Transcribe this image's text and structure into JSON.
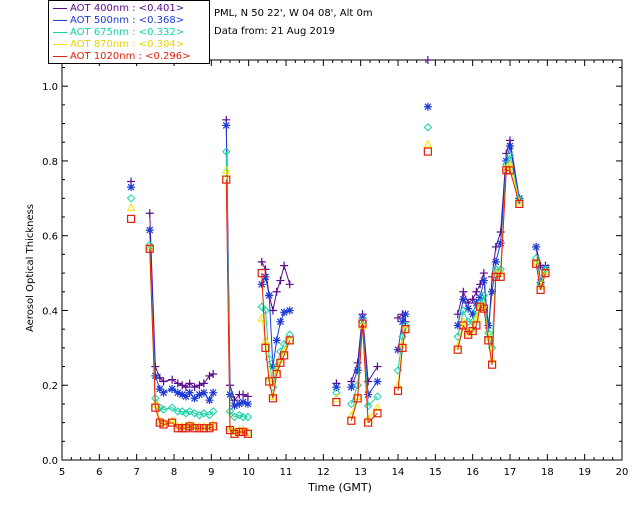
{
  "header": {
    "site_line": "PML, N 50 22', W 04 08', Alt 0m",
    "date_line": "Data from: 21 Aug 2019"
  },
  "chart_data": {
    "type": "scatter",
    "xlabel": "Time (GMT)",
    "ylabel": "Aerosol Optical Thickness",
    "xlim": [
      5,
      20
    ],
    "ylim": [
      0.0,
      1.07
    ],
    "xticks": [
      "5",
      "6",
      "7",
      "8",
      "9",
      "10",
      "11",
      "12",
      "13",
      "14",
      "15",
      "16",
      "17",
      "18",
      "19",
      "20"
    ],
    "yticks": [
      "0.0",
      "0.2",
      "0.4",
      "0.6",
      "0.8",
      "1.0"
    ],
    "legend_placement": "top-left",
    "series": [
      {
        "name": "AOT 400nm : <0.401>",
        "color": "#5a0a8c",
        "marker": "plus",
        "points": [
          [
            6.85,
            0.745
          ],
          [
            7.35,
            0.66
          ],
          [
            7.5,
            0.25
          ],
          [
            7.62,
            0.22
          ],
          [
            7.72,
            0.21
          ],
          [
            7.95,
            0.215
          ],
          [
            8.1,
            0.205
          ],
          [
            8.22,
            0.2
          ],
          [
            8.32,
            0.195
          ],
          [
            8.42,
            0.205
          ],
          [
            8.55,
            0.195
          ],
          [
            8.68,
            0.2
          ],
          [
            8.8,
            0.205
          ],
          [
            8.95,
            0.225
          ],
          [
            9.05,
            0.23
          ],
          [
            9.4,
            0.91
          ],
          [
            9.5,
            0.2
          ],
          [
            9.62,
            0.16
          ],
          [
            9.75,
            0.175
          ],
          [
            9.85,
            0.175
          ],
          [
            9.98,
            0.17
          ],
          [
            10.35,
            0.53
          ],
          [
            10.45,
            0.51
          ],
          [
            10.55,
            0.44
          ],
          [
            10.65,
            0.4
          ],
          [
            10.75,
            0.45
          ],
          [
            10.85,
            0.48
          ],
          [
            10.95,
            0.52
          ],
          [
            11.1,
            0.47
          ],
          [
            12.35,
            0.205
          ],
          [
            12.75,
            0.21
          ],
          [
            12.92,
            0.26
          ],
          [
            13.05,
            0.39
          ],
          [
            13.2,
            0.21
          ],
          [
            13.45,
            0.25
          ],
          [
            14.0,
            0.38
          ],
          [
            14.12,
            0.39
          ],
          [
            14.2,
            0.37
          ],
          [
            14.8,
            1.07
          ],
          [
            15.6,
            0.39
          ],
          [
            15.75,
            0.45
          ],
          [
            15.88,
            0.42
          ],
          [
            16.0,
            0.43
          ],
          [
            16.1,
            0.45
          ],
          [
            16.2,
            0.47
          ],
          [
            16.3,
            0.5
          ],
          [
            16.42,
            0.33
          ],
          [
            16.52,
            0.49
          ],
          [
            16.62,
            0.57
          ],
          [
            16.75,
            0.61
          ],
          [
            16.9,
            0.82
          ],
          [
            17.0,
            0.855
          ],
          [
            17.25,
            0.7
          ],
          [
            17.7,
            0.57
          ],
          [
            17.82,
            0.52
          ],
          [
            17.95,
            0.52
          ]
        ]
      },
      {
        "name": "AOT 500nm : <0.368>",
        "color": "#1d3bd6",
        "marker": "star",
        "points": [
          [
            6.85,
            0.73
          ],
          [
            7.35,
            0.615
          ],
          [
            7.5,
            0.225
          ],
          [
            7.62,
            0.19
          ],
          [
            7.72,
            0.18
          ],
          [
            7.95,
            0.19
          ],
          [
            8.1,
            0.18
          ],
          [
            8.22,
            0.175
          ],
          [
            8.32,
            0.17
          ],
          [
            8.42,
            0.18
          ],
          [
            8.55,
            0.165
          ],
          [
            8.68,
            0.175
          ],
          [
            8.8,
            0.18
          ],
          [
            8.95,
            0.16
          ],
          [
            9.05,
            0.18
          ],
          [
            9.4,
            0.895
          ],
          [
            9.5,
            0.175
          ],
          [
            9.62,
            0.145
          ],
          [
            9.75,
            0.15
          ],
          [
            9.85,
            0.155
          ],
          [
            9.98,
            0.15
          ],
          [
            10.35,
            0.47
          ],
          [
            10.45,
            0.49
          ],
          [
            10.55,
            0.44
          ],
          [
            10.65,
            0.25
          ],
          [
            10.75,
            0.32
          ],
          [
            10.85,
            0.37
          ],
          [
            10.95,
            0.395
          ],
          [
            11.1,
            0.4
          ],
          [
            12.35,
            0.195
          ],
          [
            12.75,
            0.195
          ],
          [
            12.92,
            0.24
          ],
          [
            13.05,
            0.38
          ],
          [
            13.2,
            0.175
          ],
          [
            13.45,
            0.21
          ],
          [
            14.0,
            0.295
          ],
          [
            14.12,
            0.37
          ],
          [
            14.2,
            0.39
          ],
          [
            14.8,
            0.945
          ],
          [
            15.6,
            0.36
          ],
          [
            15.75,
            0.43
          ],
          [
            15.88,
            0.405
          ],
          [
            16.0,
            0.39
          ],
          [
            16.1,
            0.42
          ],
          [
            16.2,
            0.435
          ],
          [
            16.3,
            0.48
          ],
          [
            16.42,
            0.36
          ],
          [
            16.52,
            0.45
          ],
          [
            16.62,
            0.53
          ],
          [
            16.75,
            0.58
          ],
          [
            16.9,
            0.8
          ],
          [
            17.0,
            0.84
          ],
          [
            17.25,
            0.7
          ],
          [
            17.7,
            0.57
          ],
          [
            17.82,
            0.475
          ],
          [
            17.95,
            0.515
          ]
        ]
      },
      {
        "name": "AOT 675nm : <0.332>",
        "color": "#14d2a6",
        "marker": "diamond",
        "points": [
          [
            6.85,
            0.7
          ],
          [
            7.35,
            0.575
          ],
          [
            7.5,
            0.165
          ],
          [
            7.62,
            0.14
          ],
          [
            7.72,
            0.135
          ],
          [
            7.95,
            0.14
          ],
          [
            8.1,
            0.13
          ],
          [
            8.22,
            0.13
          ],
          [
            8.32,
            0.125
          ],
          [
            8.42,
            0.13
          ],
          [
            8.55,
            0.125
          ],
          [
            8.68,
            0.12
          ],
          [
            8.8,
            0.125
          ],
          [
            8.95,
            0.12
          ],
          [
            9.05,
            0.13
          ],
          [
            9.4,
            0.825
          ],
          [
            9.5,
            0.13
          ],
          [
            9.62,
            0.115
          ],
          [
            9.75,
            0.12
          ],
          [
            9.85,
            0.115
          ],
          [
            9.98,
            0.115
          ],
          [
            10.35,
            0.41
          ],
          [
            10.45,
            0.4
          ],
          [
            10.55,
            0.27
          ],
          [
            10.65,
            0.195
          ],
          [
            10.75,
            0.25
          ],
          [
            10.85,
            0.29
          ],
          [
            10.95,
            0.31
          ],
          [
            11.1,
            0.335
          ],
          [
            12.35,
            0.18
          ],
          [
            12.75,
            0.15
          ],
          [
            12.92,
            0.2
          ],
          [
            13.05,
            0.37
          ],
          [
            13.2,
            0.145
          ],
          [
            13.45,
            0.17
          ],
          [
            14.0,
            0.24
          ],
          [
            14.12,
            0.33
          ],
          [
            14.2,
            0.36
          ],
          [
            14.8,
            0.89
          ],
          [
            15.6,
            0.33
          ],
          [
            15.75,
            0.4
          ],
          [
            15.88,
            0.37
          ],
          [
            16.0,
            0.37
          ],
          [
            16.1,
            0.4
          ],
          [
            16.2,
            0.42
          ],
          [
            16.3,
            0.44
          ],
          [
            16.42,
            0.34
          ],
          [
            16.52,
            0.3
          ],
          [
            16.62,
            0.51
          ],
          [
            16.75,
            0.51
          ],
          [
            16.9,
            0.79
          ],
          [
            17.0,
            0.815
          ],
          [
            17.25,
            0.695
          ],
          [
            17.7,
            0.54
          ],
          [
            17.82,
            0.47
          ],
          [
            17.95,
            0.51
          ]
        ]
      },
      {
        "name": "AOT 870nm : <0.304>",
        "color": "#f5e600",
        "marker": "triangle",
        "points": [
          [
            6.85,
            0.675
          ],
          [
            7.35,
            0.57
          ],
          [
            7.5,
            0.15
          ],
          [
            7.62,
            0.105
          ],
          [
            7.72,
            0.1
          ],
          [
            7.95,
            0.105
          ],
          [
            8.1,
            0.09
          ],
          [
            8.22,
            0.09
          ],
          [
            8.32,
            0.09
          ],
          [
            8.42,
            0.095
          ],
          [
            8.55,
            0.09
          ],
          [
            8.68,
            0.09
          ],
          [
            8.8,
            0.09
          ],
          [
            8.95,
            0.09
          ],
          [
            9.05,
            0.095
          ],
          [
            9.4,
            0.775
          ],
          [
            9.5,
            0.085
          ],
          [
            9.62,
            0.075
          ],
          [
            9.75,
            0.08
          ],
          [
            9.85,
            0.08
          ],
          [
            9.98,
            0.075
          ],
          [
            10.35,
            0.38
          ],
          [
            10.45,
            0.32
          ],
          [
            10.55,
            0.22
          ],
          [
            10.65,
            0.17
          ],
          [
            10.75,
            0.24
          ],
          [
            10.85,
            0.27
          ],
          [
            10.95,
            0.29
          ],
          [
            11.1,
            0.32
          ],
          [
            12.35,
            0.165
          ],
          [
            12.75,
            0.12
          ],
          [
            12.92,
            0.17
          ],
          [
            13.05,
            0.36
          ],
          [
            13.2,
            0.11
          ],
          [
            13.45,
            0.14
          ],
          [
            14.0,
            0.2
          ],
          [
            14.12,
            0.31
          ],
          [
            14.2,
            0.35
          ],
          [
            14.8,
            0.845
          ],
          [
            15.6,
            0.305
          ],
          [
            15.75,
            0.37
          ],
          [
            15.88,
            0.34
          ],
          [
            16.0,
            0.35
          ],
          [
            16.1,
            0.38
          ],
          [
            16.2,
            0.41
          ],
          [
            16.3,
            0.415
          ],
          [
            16.42,
            0.33
          ],
          [
            16.52,
            0.27
          ],
          [
            16.62,
            0.5
          ],
          [
            16.75,
            0.5
          ],
          [
            16.9,
            0.78
          ],
          [
            17.0,
            0.79
          ],
          [
            17.25,
            0.69
          ],
          [
            17.7,
            0.53
          ],
          [
            17.82,
            0.465
          ],
          [
            17.95,
            0.505
          ]
        ]
      },
      {
        "name": "AOT 1020nm : <0.296>",
        "color": "#e0200c",
        "marker": "square",
        "points": [
          [
            6.85,
            0.645
          ],
          [
            7.35,
            0.565
          ],
          [
            7.5,
            0.14
          ],
          [
            7.62,
            0.1
          ],
          [
            7.72,
            0.095
          ],
          [
            7.95,
            0.1
          ],
          [
            8.1,
            0.085
          ],
          [
            8.22,
            0.085
          ],
          [
            8.32,
            0.085
          ],
          [
            8.42,
            0.09
          ],
          [
            8.55,
            0.085
          ],
          [
            8.68,
            0.085
          ],
          [
            8.8,
            0.085
          ],
          [
            8.95,
            0.085
          ],
          [
            9.05,
            0.09
          ],
          [
            9.4,
            0.75
          ],
          [
            9.5,
            0.08
          ],
          [
            9.62,
            0.07
          ],
          [
            9.75,
            0.075
          ],
          [
            9.85,
            0.075
          ],
          [
            9.98,
            0.07
          ],
          [
            10.35,
            0.5
          ],
          [
            10.45,
            0.3
          ],
          [
            10.55,
            0.21
          ],
          [
            10.65,
            0.165
          ],
          [
            10.75,
            0.23
          ],
          [
            10.85,
            0.26
          ],
          [
            10.95,
            0.28
          ],
          [
            11.1,
            0.32
          ],
          [
            12.35,
            0.155
          ],
          [
            12.75,
            0.105
          ],
          [
            12.92,
            0.165
          ],
          [
            13.05,
            0.365
          ],
          [
            13.2,
            0.1
          ],
          [
            13.45,
            0.125
          ],
          [
            14.0,
            0.185
          ],
          [
            14.12,
            0.3
          ],
          [
            14.2,
            0.35
          ],
          [
            14.8,
            0.825
          ],
          [
            15.6,
            0.295
          ],
          [
            15.75,
            0.36
          ],
          [
            15.88,
            0.335
          ],
          [
            16.0,
            0.345
          ],
          [
            16.1,
            0.36
          ],
          [
            16.2,
            0.41
          ],
          [
            16.3,
            0.405
          ],
          [
            16.42,
            0.32
          ],
          [
            16.52,
            0.255
          ],
          [
            16.62,
            0.49
          ],
          [
            16.75,
            0.49
          ],
          [
            16.9,
            0.775
          ],
          [
            17.0,
            0.775
          ],
          [
            17.25,
            0.685
          ],
          [
            17.7,
            0.525
          ],
          [
            17.82,
            0.455
          ],
          [
            17.95,
            0.5
          ]
        ]
      }
    ],
    "segments": [
      [
        6.8,
        6.9
      ],
      [
        7.3,
        9.1
      ],
      [
        9.35,
        10.05
      ],
      [
        10.3,
        11.15
      ],
      [
        12.3,
        12.4
      ],
      [
        12.7,
        13.5
      ],
      [
        13.95,
        14.25
      ],
      [
        14.75,
        14.85
      ],
      [
        15.55,
        17.3
      ],
      [
        17.65,
        18.0
      ]
    ]
  }
}
